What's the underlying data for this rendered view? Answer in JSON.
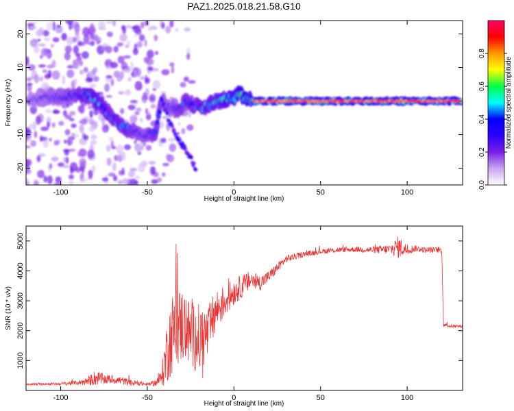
{
  "title": "PAZ1.2025.018.21.58.G10",
  "chart_data": [
    {
      "type": "heatmap",
      "xlabel": "Height of straight line (km)",
      "ylabel": "Frequency (Hz)",
      "xlim": [
        -120,
        132
      ],
      "ylim": [
        -25,
        24
      ],
      "xticks": [
        -100,
        -50,
        0,
        50,
        100
      ],
      "yticks": [
        -20,
        -10,
        0,
        10,
        20
      ],
      "colorbar": {
        "label": "Normalized spectral amplitude",
        "range": [
          0,
          1
        ],
        "ticks": [
          0.0,
          0.2,
          0.4,
          0.6,
          0.8
        ],
        "colormap": [
          "#ffffff",
          "#c9a6f2",
          "#7a1fe8",
          "#2b00ff",
          "#0000ff",
          "#00ffff",
          "#00ff44",
          "#ffff00",
          "#ff9900",
          "#ff0000",
          "#ff0066"
        ]
      },
      "ridge": [
        {
          "x": -118,
          "y": 0.5,
          "a": 0.35
        },
        {
          "x": -110,
          "y": 0.8,
          "a": 0.4
        },
        {
          "x": -100,
          "y": 1.2,
          "a": 0.45
        },
        {
          "x": -92,
          "y": 1.5,
          "a": 0.5
        },
        {
          "x": -85,
          "y": 2.0,
          "a": 0.6
        },
        {
          "x": -80,
          "y": 0.5,
          "a": 0.65
        },
        {
          "x": -75,
          "y": -2.0,
          "a": 0.6
        },
        {
          "x": -70,
          "y": -5.0,
          "a": 0.55
        },
        {
          "x": -65,
          "y": -7.5,
          "a": 0.6
        },
        {
          "x": -58,
          "y": -9.0,
          "a": 0.5
        },
        {
          "x": -52,
          "y": -10.0,
          "a": 0.45
        },
        {
          "x": -45,
          "y": -9.5,
          "a": 0.55
        },
        {
          "x": -42,
          "y": 0.5,
          "a": 0.5
        },
        {
          "x": -38,
          "y": -2.0,
          "a": 0.4
        },
        {
          "x": -32,
          "y": -2.5,
          "a": 0.5
        },
        {
          "x": -28,
          "y": 0.0,
          "a": 0.55
        },
        {
          "x": -22,
          "y": -1.5,
          "a": 0.55
        },
        {
          "x": -18,
          "y": -2.0,
          "a": 0.6
        },
        {
          "x": -12,
          "y": -0.5,
          "a": 0.65
        },
        {
          "x": -5,
          "y": 0.5,
          "a": 0.7
        },
        {
          "x": 0,
          "y": 1.0,
          "a": 0.75
        },
        {
          "x": 3,
          "y": 2.0,
          "a": 0.8
        },
        {
          "x": 8,
          "y": 0.5,
          "a": 0.8
        },
        {
          "x": 12,
          "y": 0.0,
          "a": 0.85
        },
        {
          "x": 20,
          "y": 0.0,
          "a": 0.9
        },
        {
          "x": 40,
          "y": 0.0,
          "a": 0.9
        },
        {
          "x": 60,
          "y": 0.0,
          "a": 0.9
        },
        {
          "x": 80,
          "y": 0.0,
          "a": 0.9
        },
        {
          "x": 100,
          "y": 0.0,
          "a": 0.9
        },
        {
          "x": 115,
          "y": 0.0,
          "a": 0.85
        },
        {
          "x": 132,
          "y": 0.0,
          "a": 0.85
        }
      ],
      "branch": [
        {
          "x": -42,
          "y": 0.5
        },
        {
          "x": -38,
          "y": -5.0
        },
        {
          "x": -34,
          "y": -10.0
        },
        {
          "x": -30,
          "y": -13.0
        },
        {
          "x": -26,
          "y": -16.0
        },
        {
          "x": -22,
          "y": -20.0
        }
      ]
    },
    {
      "type": "line",
      "xlabel": "Height of straight line (km)",
      "ylabel": "SNR (10 * v/v)",
      "xlim": [
        -120,
        132
      ],
      "ylim": [
        0,
        5500
      ],
      "xticks": [
        -100,
        -50,
        0,
        50,
        100
      ],
      "yticks": [
        1000,
        2000,
        3000,
        4000,
        5000
      ],
      "color": "#ee3333",
      "x": [
        -120,
        -110,
        -100,
        -90,
        -85,
        -80,
        -75,
        -70,
        -65,
        -60,
        -55,
        -50,
        -45,
        -42,
        -40,
        -38,
        -35,
        -30,
        -25,
        -20,
        -15,
        -12,
        -10,
        -5,
        0,
        5,
        10,
        15,
        20,
        25,
        30,
        40,
        50,
        60,
        70,
        80,
        90,
        95,
        100,
        105,
        110,
        115,
        119,
        120,
        121,
        125,
        132
      ],
      "y": [
        200,
        220,
        220,
        260,
        300,
        420,
        380,
        360,
        330,
        260,
        240,
        200,
        260,
        420,
        900,
        1500,
        2000,
        2200,
        1900,
        1700,
        1900,
        2400,
        2700,
        3000,
        3300,
        3500,
        3700,
        3600,
        3800,
        4100,
        4400,
        4550,
        4650,
        4700,
        4720,
        4700,
        4720,
        4800,
        4700,
        4750,
        4700,
        4700,
        4700,
        4600,
        2200,
        2150,
        2150
      ],
      "noise": [
        30,
        40,
        50,
        80,
        140,
        260,
        180,
        130,
        140,
        110,
        80,
        60,
        110,
        250,
        800,
        1200,
        1400,
        1300,
        1100,
        1200,
        900,
        800,
        700,
        550,
        450,
        380,
        330,
        260,
        210,
        160,
        130,
        90,
        90,
        90,
        90,
        110,
        170,
        380,
        170,
        110,
        100,
        100,
        100,
        100,
        60,
        50,
        50
      ]
    }
  ]
}
